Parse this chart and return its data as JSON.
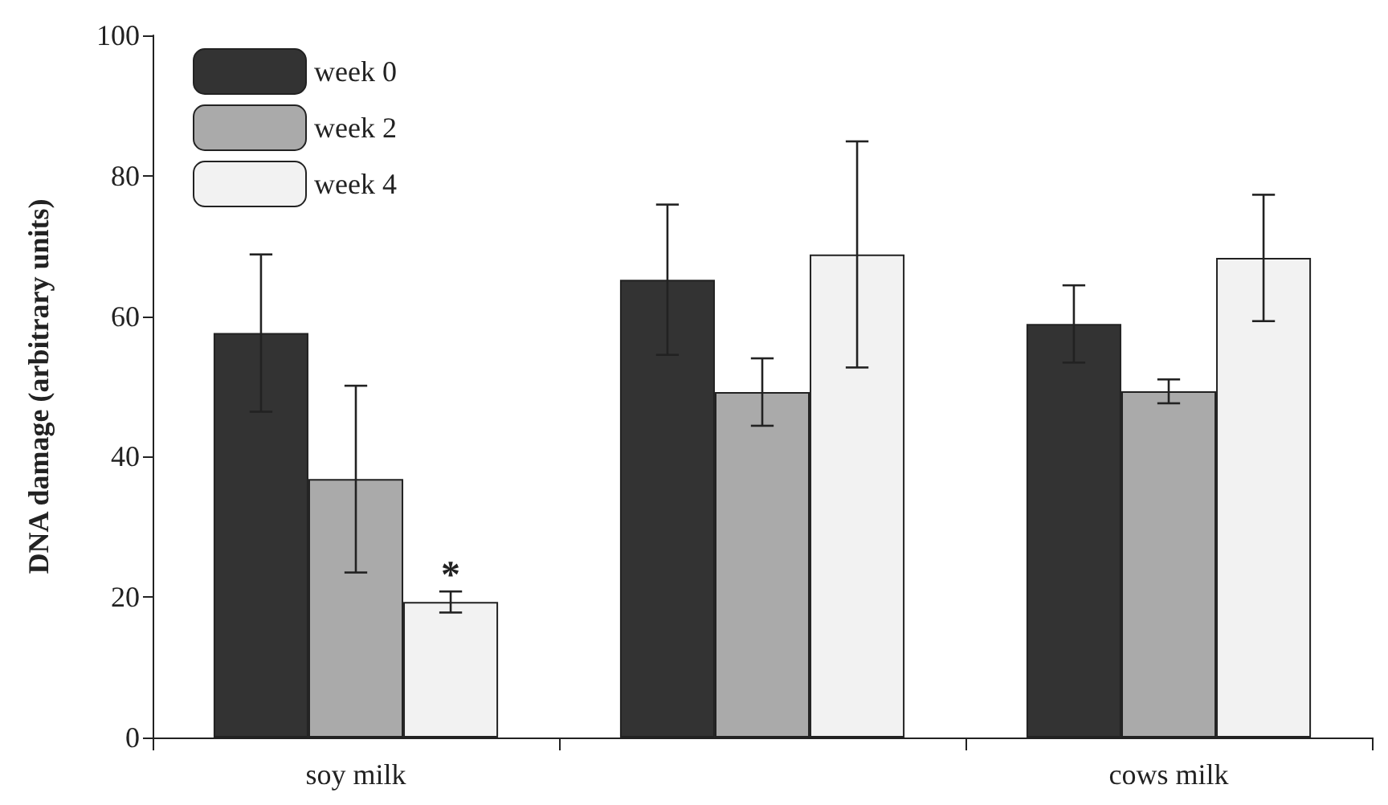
{
  "chart_data": {
    "type": "bar",
    "ylabel": "DNA damage (arbitrary units)",
    "categories": [
      "soy milk",
      null,
      "cows milk"
    ],
    "series": [
      {
        "name": "week 0",
        "color": "#333333",
        "values": [
          57.6,
          65.2,
          58.9
        ],
        "errors": [
          11.2,
          10.7,
          5.5
        ]
      },
      {
        "name": "week 2",
        "color": "#aaaaaa",
        "values": [
          36.8,
          49.2,
          49.3
        ],
        "errors": [
          13.3,
          4.8,
          1.7
        ]
      },
      {
        "name": "week 4",
        "color": "#f2f2f2",
        "values": [
          19.3,
          68.8,
          68.3
        ],
        "errors": [
          1.5,
          16.1,
          9
        ]
      }
    ],
    "ylim": [
      0,
      100
    ],
    "yticks": [
      0,
      20,
      40,
      60,
      80,
      100
    ],
    "annotations": [
      {
        "text": "*",
        "x": "soy milk",
        "y": 23
      }
    ],
    "grid": false,
    "legend": "top left"
  }
}
